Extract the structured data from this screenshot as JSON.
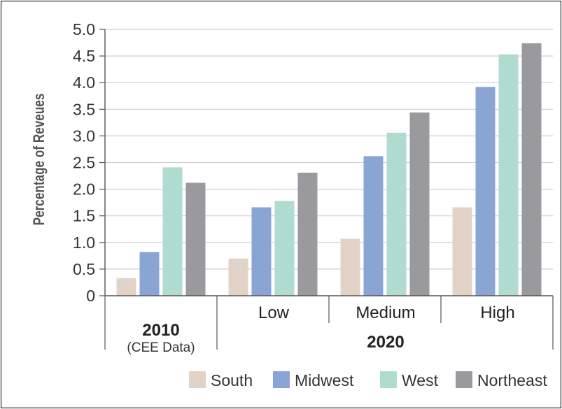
{
  "chart_data": {
    "type": "bar",
    "ylabel": "Percentage of Reveues",
    "ylim": [
      0,
      5.0
    ],
    "yticks": [
      "0",
      "0.5",
      "1.0",
      "1.5",
      "2.0",
      "2.5",
      "3.0",
      "3.5",
      "4.0",
      "4.5",
      "5.0"
    ],
    "grid": true,
    "legend_position": "bottom-right",
    "categories": [
      "2010",
      "Low",
      "Medium",
      "High"
    ],
    "category_labels": {
      "first": {
        "main": "2010",
        "sub": "(CEE Data)"
      },
      "group": "2020",
      "rest": [
        "Low",
        "Medium",
        "High"
      ]
    },
    "series": [
      {
        "name": "South",
        "color": "#e2d3c8",
        "values": [
          0.33,
          0.7,
          1.07,
          1.66
        ]
      },
      {
        "name": "Midwest",
        "color": "#8aa4d6",
        "values": [
          0.82,
          1.66,
          2.62,
          3.92
        ]
      },
      {
        "name": "West",
        "color": "#b0dccf",
        "values": [
          2.41,
          1.78,
          3.06,
          4.53
        ]
      },
      {
        "name": "Northeast",
        "color": "#9a9a9e",
        "values": [
          2.12,
          2.31,
          3.44,
          4.74
        ]
      }
    ]
  }
}
